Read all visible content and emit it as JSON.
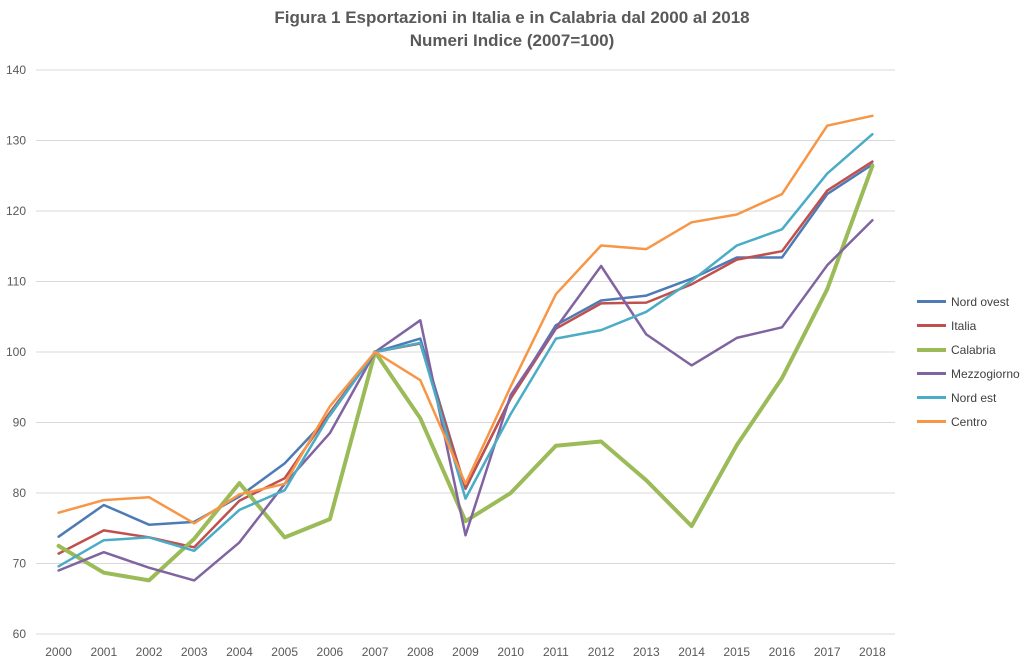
{
  "chart_data": {
    "type": "line",
    "title": "Figura 1 Esportazioni in Italia e in Calabria dal 2000 al 2018",
    "subtitle": "Numeri Indice (2007=100)",
    "categories": [
      "2000",
      "2001",
      "2002",
      "2003",
      "2004",
      "2005",
      "2006",
      "2007",
      "2008",
      "2009",
      "2010",
      "2011",
      "2012",
      "2013",
      "2014",
      "2015",
      "2016",
      "2017",
      "2018"
    ],
    "ylim": [
      60,
      140
    ],
    "yticks": [
      60,
      70,
      80,
      90,
      100,
      110,
      120,
      130,
      140
    ],
    "grid": "horizontal",
    "legend_position": "right",
    "series": [
      {
        "name": "Nord ovest",
        "color": "#4e7bb5",
        "width": 2.5,
        "values": [
          73.8,
          78.3,
          75.5,
          75.9,
          79.5,
          84.2,
          91.0,
          100.0,
          101.9,
          80.6,
          93.5,
          103.8,
          107.3,
          108.0,
          110.4,
          113.4,
          113.4,
          122.4,
          126.6
        ]
      },
      {
        "name": "Italia",
        "color": "#c0504d",
        "width": 2.5,
        "values": [
          71.4,
          74.7,
          73.7,
          72.3,
          78.9,
          82.1,
          91.4,
          100.0,
          101.2,
          80.7,
          93.4,
          103.3,
          106.9,
          107.0,
          109.6,
          113.1,
          114.3,
          122.9,
          127.0
        ]
      },
      {
        "name": "Calabria",
        "color": "#9bbb59",
        "width": 4,
        "values": [
          72.5,
          68.7,
          67.6,
          73.5,
          81.4,
          73.7,
          76.3,
          100.0,
          90.6,
          76.0,
          80.0,
          86.7,
          87.3,
          81.8,
          75.3,
          86.8,
          96.3,
          108.9,
          126.4
        ]
      },
      {
        "name": "Mezzogiorno",
        "color": "#8064a2",
        "width": 2.5,
        "values": [
          69.0,
          71.6,
          69.4,
          67.6,
          73.0,
          81.3,
          88.5,
          100.0,
          104.5,
          74.0,
          93.9,
          103.4,
          112.2,
          102.5,
          98.1,
          102.0,
          103.5,
          112.3,
          118.7
        ]
      },
      {
        "name": "Nord est",
        "color": "#4bacc6",
        "width": 2.5,
        "values": [
          69.6,
          73.3,
          73.7,
          71.8,
          77.6,
          80.4,
          91.1,
          100.0,
          101.3,
          79.2,
          91.2,
          101.9,
          103.1,
          105.7,
          110.1,
          115.1,
          117.4,
          125.3,
          130.9
        ]
      },
      {
        "name": "Centro",
        "color": "#f79646",
        "width": 2.5,
        "values": [
          77.2,
          79.0,
          79.4,
          75.7,
          79.8,
          81.3,
          92.3,
          100.0,
          96.0,
          81.3,
          95.1,
          108.2,
          115.1,
          114.6,
          118.4,
          119.5,
          122.4,
          132.1,
          133.5
        ]
      }
    ]
  }
}
